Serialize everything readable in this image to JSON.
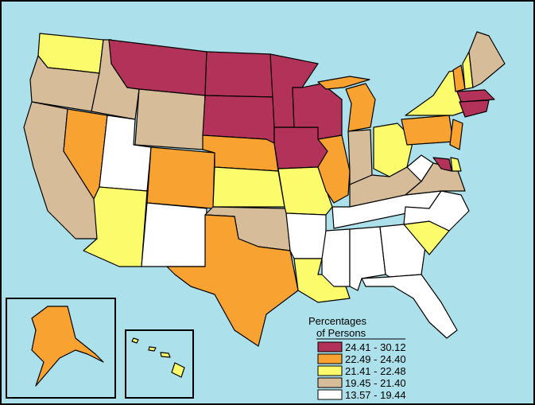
{
  "legend": {
    "title_lines": [
      "Percentages",
      "of Persons"
    ],
    "classes": [
      {
        "label": "24.41 - 30.12",
        "color": "#b3325a"
      },
      {
        "label": "22.49 - 24.40",
        "color": "#f8a232"
      },
      {
        "label": "21.41 - 22.48",
        "color": "#fbfb6c"
      },
      {
        "label": "19.45 - 21.40",
        "color": "#d6bc98"
      },
      {
        "label": "13.57 - 19.44",
        "color": "#ffffff"
      }
    ]
  }
}
